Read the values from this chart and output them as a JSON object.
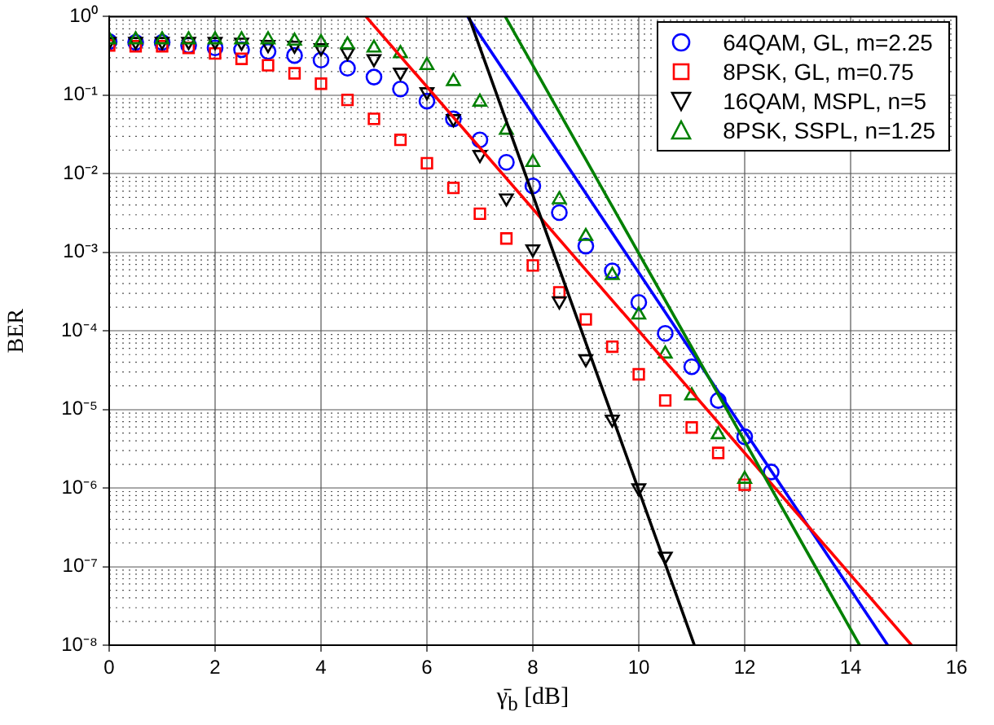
{
  "chart_data": {
    "type": "scatter",
    "xlabel": "γ̄$_{b}$ [dB]",
    "ylabel": "BER",
    "log": true,
    "grid": true,
    "legend": "top right",
    "xlim": [
      0,
      16
    ],
    "xticks": [
      0,
      2,
      4,
      6,
      8,
      10,
      12,
      14,
      16
    ],
    "ylim": [
      1e-08,
      1
    ],
    "yticks": [
      {
        "value": 1,
        "label": "10⁰"
      },
      {
        "value": 0.1,
        "label": "10⁻¹"
      },
      {
        "value": 0.01,
        "label": "10⁻²"
      },
      {
        "value": 0.001,
        "label": "10⁻³"
      },
      {
        "value": 0.0001,
        "label": "10⁻⁴"
      },
      {
        "value": 1e-05,
        "label": "10⁻⁵"
      },
      {
        "value": 1e-06,
        "label": "10⁻⁶"
      },
      {
        "value": 1e-07,
        "label": "10⁻⁷"
      },
      {
        "value": 1e-08,
        "label": "10⁻⁸"
      }
    ],
    "series": [
      {
        "name": "64QAM, GL, m=2.25",
        "color": "#0000ff",
        "marker": "circle",
        "x": [
          0,
          0.5,
          1,
          1.5,
          2,
          2.5,
          3,
          3.5,
          4,
          4.5,
          5,
          5.5,
          6,
          6.5,
          7,
          7.5,
          8,
          8.5,
          9,
          9.5,
          10,
          10.5,
          11,
          11.5,
          12,
          12.5
        ],
        "values": [
          0.48,
          0.47,
          0.47,
          0.43,
          0.4,
          0.38,
          0.36,
          0.32,
          0.28,
          0.22,
          0.17,
          0.12,
          0.084,
          0.05,
          0.027,
          0.014,
          0.007,
          0.0032,
          0.0012,
          0.00058,
          0.00023,
          9.3e-05,
          3.5e-05,
          1.3e-05,
          4.5e-06,
          1.6e-06
        ]
      },
      {
        "name": "8PSK, GL, m=0.75",
        "color": "#ff0000",
        "marker": "square",
        "x": [
          0,
          0.5,
          1,
          1.5,
          2,
          2.5,
          3,
          3.5,
          4,
          4.5,
          5,
          5.5,
          6,
          6.5,
          7,
          7.5,
          8,
          8.5,
          9,
          9.5,
          10,
          10.5,
          11,
          11.5,
          12
        ],
        "values": [
          0.43,
          0.42,
          0.42,
          0.4,
          0.34,
          0.29,
          0.24,
          0.19,
          0.14,
          0.087,
          0.05,
          0.027,
          0.0136,
          0.0066,
          0.0031,
          0.0015,
          0.00068,
          0.00031,
          0.00014,
          6.3e-05,
          2.8e-05,
          1.3e-05,
          5.9e-06,
          2.8e-06,
          1.1e-06
        ]
      },
      {
        "name": "16QAM, MSPL, n=5",
        "color": "#000000",
        "marker": "triangle-down",
        "x": [
          0,
          0.5,
          1,
          1.5,
          2,
          2.5,
          3,
          3.5,
          4,
          4.5,
          5,
          5.5,
          6,
          6.5,
          7,
          7.5,
          8,
          8.5,
          9,
          9.5,
          10,
          10.5
        ],
        "values": [
          0.48,
          0.48,
          0.48,
          0.48,
          0.48,
          0.47,
          0.44,
          0.43,
          0.4,
          0.35,
          0.29,
          0.195,
          0.11,
          0.05,
          0.0175,
          0.0049,
          0.0011,
          0.00024,
          4.4e-05,
          7.5e-06,
          1e-06,
          1.35e-07
        ]
      },
      {
        "name": "8PSK, SSPL, n=1.25",
        "color": "#008000",
        "marker": "triangle",
        "x": [
          0,
          0.5,
          1,
          1.5,
          2,
          2.5,
          3,
          3.5,
          4,
          4.5,
          5,
          5.5,
          6,
          6.5,
          7,
          7.5,
          8,
          8.5,
          9,
          9.5,
          10,
          10.5,
          11,
          11.5,
          12
        ],
        "values": [
          0.51,
          0.51,
          0.51,
          0.51,
          0.51,
          0.51,
          0.51,
          0.49,
          0.47,
          0.44,
          0.4,
          0.34,
          0.24,
          0.15,
          0.082,
          0.036,
          0.014,
          0.0047,
          0.0016,
          0.00051,
          0.00016,
          5.1e-05,
          1.5e-05,
          4.8e-06,
          1.3e-06
        ]
      },
      {
        "type": "line",
        "color": "#0000ff",
        "x": [
          6.77,
          14.7
        ],
        "values": [
          1,
          1e-08
        ]
      },
      {
        "type": "line",
        "color": "#ff0000",
        "x": [
          4.85,
          15.15
        ],
        "values": [
          1,
          1e-08
        ]
      },
      {
        "type": "line",
        "color": "#000000",
        "x": [
          6.79,
          11.05
        ],
        "values": [
          1,
          1e-08
        ]
      },
      {
        "type": "line",
        "color": "#008000",
        "x": [
          7.48,
          14.17
        ],
        "values": [
          1,
          1e-08
        ]
      }
    ]
  }
}
